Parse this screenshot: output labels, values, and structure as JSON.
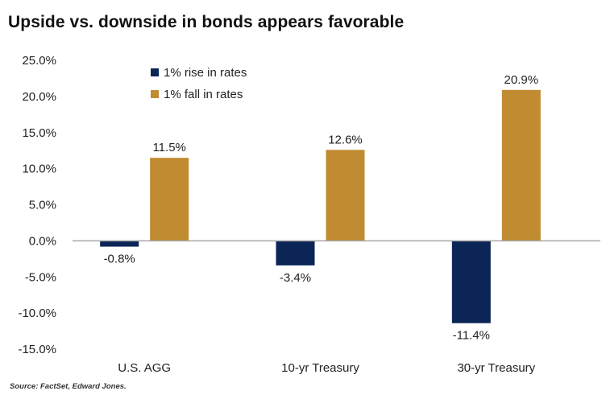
{
  "chart_data": {
    "type": "bar",
    "title": "Upside vs. downside in bonds appears favorable",
    "categories": [
      "U.S. AGG",
      "10-yr Treasury",
      "30-yr Treasury"
    ],
    "series": [
      {
        "name": "1% rise in rates",
        "color": "#0c2557",
        "values": [
          -0.8,
          -3.4,
          -11.4
        ],
        "labels": [
          "-0.8%",
          "-3.4%",
          "-11.4%"
        ]
      },
      {
        "name": "1% fall in rates",
        "color": "#c08b31",
        "values": [
          11.5,
          12.6,
          20.9
        ],
        "labels": [
          "11.5%",
          "12.6%",
          "20.9%"
        ]
      }
    ],
    "xlabel": "",
    "ylabel": "",
    "ylim": [
      -15,
      25
    ],
    "yticks": [
      25,
      20,
      15,
      10,
      5,
      0,
      -5,
      -10,
      -15
    ],
    "ytick_labels": [
      "25.0%",
      "20.0%",
      "15.0%",
      "10.0%",
      "5.0%",
      "0.0%",
      "-5.0%",
      "-10.0%",
      "-15.0%"
    ],
    "grid": false,
    "legend_position": "top-left",
    "source": "Source: FactSet, Edward Jones."
  }
}
